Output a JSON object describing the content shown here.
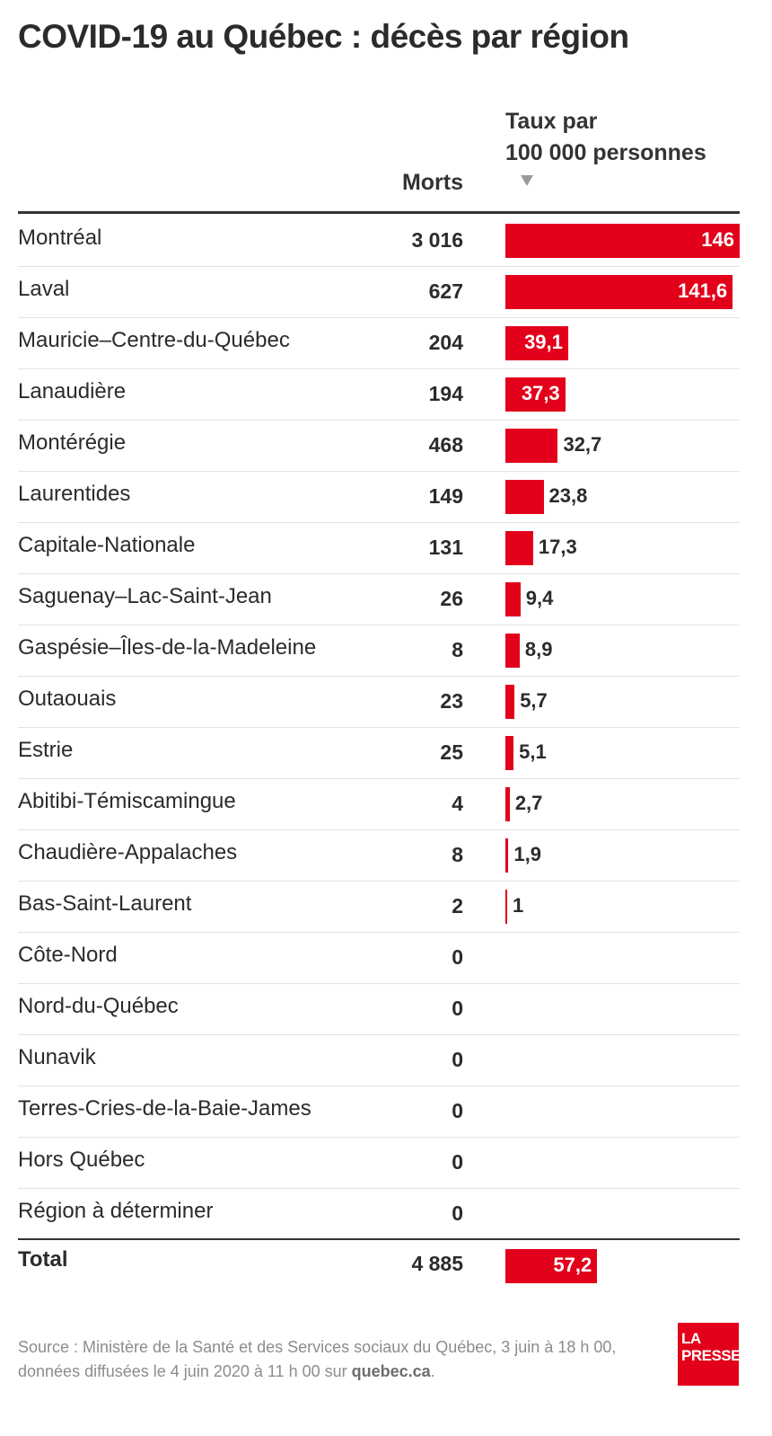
{
  "title": "COVID-19 au Québec : décès par région",
  "headers": {
    "deaths": "Morts",
    "rate_line1": "Taux par",
    "rate_line2": "100 000 personnes"
  },
  "chart_data": {
    "type": "table",
    "title": "COVID-19 au Québec : décès par région",
    "columns": [
      "Morts",
      "Taux par 100 000 personnes"
    ],
    "sort": "rate descending",
    "bar_color": "#e2001a",
    "rows": [
      {
        "region": "Montréal",
        "deaths": "3 016",
        "rate": 146,
        "rate_label": "146"
      },
      {
        "region": "Laval",
        "deaths": "627",
        "rate": 141.6,
        "rate_label": "141,6"
      },
      {
        "region": "Mauricie–Centre-du-Québec",
        "deaths": "204",
        "rate": 39.1,
        "rate_label": "39,1"
      },
      {
        "region": "Lanaudière",
        "deaths": "194",
        "rate": 37.3,
        "rate_label": "37,3"
      },
      {
        "region": "Montérégie",
        "deaths": "468",
        "rate": 32.7,
        "rate_label": "32,7"
      },
      {
        "region": "Laurentides",
        "deaths": "149",
        "rate": 23.8,
        "rate_label": "23,8"
      },
      {
        "region": "Capitale-Nationale",
        "deaths": "131",
        "rate": 17.3,
        "rate_label": "17,3"
      },
      {
        "region": "Saguenay–Lac-Saint-Jean",
        "deaths": "26",
        "rate": 9.4,
        "rate_label": "9,4"
      },
      {
        "region": "Gaspésie–Îles-de-la-Madeleine",
        "deaths": "8",
        "rate": 8.9,
        "rate_label": "8,9"
      },
      {
        "region": "Outaouais",
        "deaths": "23",
        "rate": 5.7,
        "rate_label": "5,7"
      },
      {
        "region": "Estrie",
        "deaths": "25",
        "rate": 5.1,
        "rate_label": "5,1"
      },
      {
        "region": "Abitibi-Témiscamingue",
        "deaths": "4",
        "rate": 2.7,
        "rate_label": "2,7"
      },
      {
        "region": "Chaudière-Appalaches",
        "deaths": "8",
        "rate": 1.9,
        "rate_label": "1,9"
      },
      {
        "region": "Bas-Saint-Laurent",
        "deaths": "2",
        "rate": 1,
        "rate_label": "1"
      },
      {
        "region": "Côte-Nord",
        "deaths": "0",
        "rate": null,
        "rate_label": ""
      },
      {
        "region": "Nord-du-Québec",
        "deaths": "0",
        "rate": null,
        "rate_label": ""
      },
      {
        "region": "Nunavik",
        "deaths": "0",
        "rate": null,
        "rate_label": ""
      },
      {
        "region": "Terres-Cries-de-la-Baie-James",
        "deaths": "0",
        "rate": null,
        "rate_label": ""
      },
      {
        "region": "Hors Québec",
        "deaths": "0",
        "rate": null,
        "rate_label": ""
      },
      {
        "region": "Région à déterminer",
        "deaths": "0",
        "rate": null,
        "rate_label": ""
      }
    ],
    "total": {
      "region": "Total",
      "deaths": "4 885",
      "rate": 57.2,
      "rate_label": "57,2"
    },
    "rate_max": 146
  },
  "source": {
    "text": "Source : Ministère de la Santé et des Services sociaux du Québec, 3 juin à 18 h 00,",
    "text2": "données diffusées le 4 juin 2020 à 11 h 00 sur",
    "link": "quebec.ca",
    "end": "."
  },
  "logo": {
    "line1": "LA",
    "line2": "PRESSE"
  }
}
